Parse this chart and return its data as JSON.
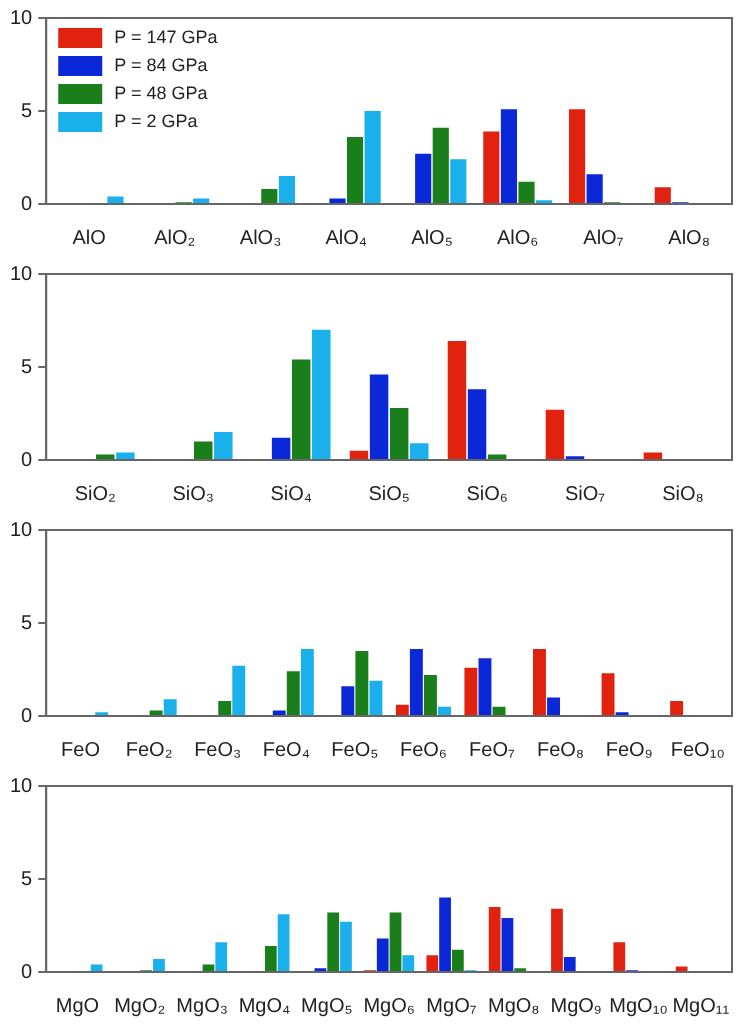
{
  "chart_data": [
    {
      "type": "bar",
      "categories": [
        "AlO",
        "AlO₂",
        "AlO₃",
        "AlO₄",
        "AlO₅",
        "AlO₆",
        "AlO₇",
        "AlO₈"
      ],
      "ylim": [
        0,
        10
      ],
      "yticks": [
        0,
        5,
        10
      ],
      "legend": "top left",
      "series": [
        {
          "name": "P = 147 GPa",
          "color": "#e0220f",
          "values": [
            null,
            null,
            null,
            null,
            null,
            3.9,
            5.1,
            0.9
          ]
        },
        {
          "name": "P = 84 GPa",
          "color": "#0a28d8",
          "values": [
            null,
            null,
            null,
            0.3,
            2.7,
            5.1,
            1.6,
            0.1
          ]
        },
        {
          "name": "P = 48 GPa",
          "color": "#1a7f1a",
          "values": [
            null,
            0.1,
            0.8,
            3.6,
            4.1,
            1.2,
            0.1,
            null
          ]
        },
        {
          "name": "P = 2 GPa",
          "color": "#1ab0ec",
          "values": [
            0.4,
            0.3,
            1.5,
            5.0,
            2.4,
            0.2,
            null,
            null
          ]
        }
      ]
    },
    {
      "type": "bar",
      "categories": [
        "SiO₂",
        "SiO₃",
        "SiO₄",
        "SiO₅",
        "SiO₆",
        "SiO₇",
        "SiO₈"
      ],
      "ylim": [
        0,
        10
      ],
      "yticks": [
        0,
        5,
        10
      ],
      "series": [
        {
          "color": "#e0220f",
          "values": [
            null,
            null,
            null,
            0.5,
            6.4,
            2.7,
            0.4
          ]
        },
        {
          "color": "#0a28d8",
          "values": [
            null,
            null,
            1.2,
            4.6,
            3.8,
            0.2,
            null
          ]
        },
        {
          "color": "#1a7f1a",
          "values": [
            0.3,
            1.0,
            5.4,
            2.8,
            0.3,
            null,
            null
          ]
        },
        {
          "color": "#1ab0ec",
          "values": [
            0.4,
            1.5,
            7.0,
            0.9,
            null,
            null,
            null
          ]
        }
      ]
    },
    {
      "type": "bar",
      "categories": [
        "FeO",
        "FeO₂",
        "FeO₃",
        "FeO₄",
        "FeO₅",
        "FeO₆",
        "FeO₇",
        "FeO₈",
        "FeO₉",
        "FeO₁₀"
      ],
      "ylim": [
        0,
        10
      ],
      "yticks": [
        0,
        5,
        10
      ],
      "series": [
        {
          "color": "#e0220f",
          "values": [
            null,
            null,
            null,
            null,
            null,
            0.6,
            2.6,
            3.6,
            2.3,
            0.8
          ]
        },
        {
          "color": "#0a28d8",
          "values": [
            null,
            null,
            null,
            0.3,
            1.6,
            3.6,
            3.1,
            1.0,
            0.2,
            null
          ]
        },
        {
          "color": "#1a7f1a",
          "values": [
            null,
            0.3,
            0.8,
            2.4,
            3.5,
            2.2,
            0.5,
            null,
            null,
            null
          ]
        },
        {
          "color": "#1ab0ec",
          "values": [
            0.2,
            0.9,
            2.7,
            3.6,
            1.9,
            0.5,
            null,
            null,
            null,
            null
          ]
        }
      ]
    },
    {
      "type": "bar",
      "categories": [
        "MgO",
        "MgO₂",
        "MgO₃",
        "MgO₄",
        "MgO₅",
        "MgO₆",
        "MgO₇",
        "MgO₈",
        "MgO₉",
        "MgO₁₀",
        "MgO₁₁"
      ],
      "ylim": [
        0,
        10
      ],
      "yticks": [
        0,
        5,
        10
      ],
      "series": [
        {
          "color": "#e0220f",
          "values": [
            null,
            null,
            null,
            null,
            null,
            0.1,
            0.9,
            3.5,
            3.4,
            1.6,
            0.3
          ]
        },
        {
          "color": "#0a28d8",
          "values": [
            null,
            null,
            null,
            null,
            0.2,
            1.8,
            4.0,
            2.9,
            0.8,
            0.1,
            null
          ]
        },
        {
          "color": "#1a7f1a",
          "values": [
            null,
            0.1,
            0.4,
            1.4,
            3.2,
            3.2,
            1.2,
            0.2,
            null,
            null,
            null
          ]
        },
        {
          "color": "#1ab0ec",
          "values": [
            0.4,
            0.7,
            1.6,
            3.1,
            2.7,
            0.9,
            0.1,
            null,
            null,
            null,
            null
          ]
        }
      ]
    }
  ]
}
